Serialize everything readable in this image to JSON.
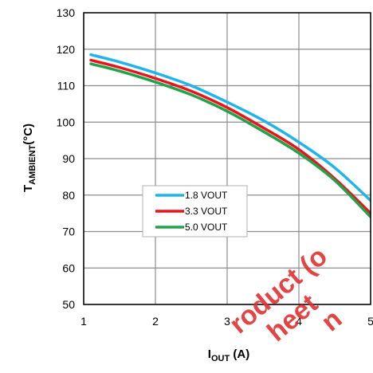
{
  "chart_data": {
    "type": "line",
    "xlabel": {
      "main": "I",
      "sub": "OUT",
      "unit": " (A)"
    },
    "ylabel": {
      "main": "T",
      "sub": "AMBIENT",
      "unit": "(°C)"
    },
    "xlim": [
      1,
      5
    ],
    "ylim": [
      50,
      130
    ],
    "xticks": [
      "1",
      "2",
      "3",
      "4",
      "5"
    ],
    "yticks": [
      "50",
      "60",
      "70",
      "80",
      "90",
      "100",
      "110",
      "120",
      "130"
    ],
    "grid": true,
    "legend_position": "center-left",
    "series": [
      {
        "name": "1.8 VOUT",
        "color": "#1fb4ec",
        "x": [
          1.1,
          1.5,
          2.0,
          2.5,
          3.0,
          3.5,
          4.0,
          4.5,
          5.0
        ],
        "y": [
          118.5,
          116.5,
          113.5,
          110.0,
          105.5,
          100.5,
          94.5,
          87.5,
          78.5
        ]
      },
      {
        "name": "3.3 VOUT",
        "color": "#e8141b",
        "x": [
          1.1,
          1.5,
          2.0,
          2.5,
          3.0,
          3.5,
          4.0,
          4.5,
          5.0
        ],
        "y": [
          117.0,
          115.0,
          112.0,
          108.5,
          104.0,
          98.5,
          92.5,
          84.5,
          75.0
        ]
      },
      {
        "name": "5.0 VOUT",
        "color": "#22a34a",
        "x": [
          1.1,
          1.5,
          2.0,
          2.5,
          3.0,
          3.5,
          4.0,
          4.5,
          5.0
        ],
        "y": [
          116.0,
          114.0,
          111.0,
          107.5,
          103.0,
          97.5,
          91.5,
          84.0,
          74.0
        ]
      }
    ]
  },
  "watermark": {
    "lines": [
      "roduct (o",
      "heet",
      "n"
    ],
    "color": "#e03030"
  }
}
